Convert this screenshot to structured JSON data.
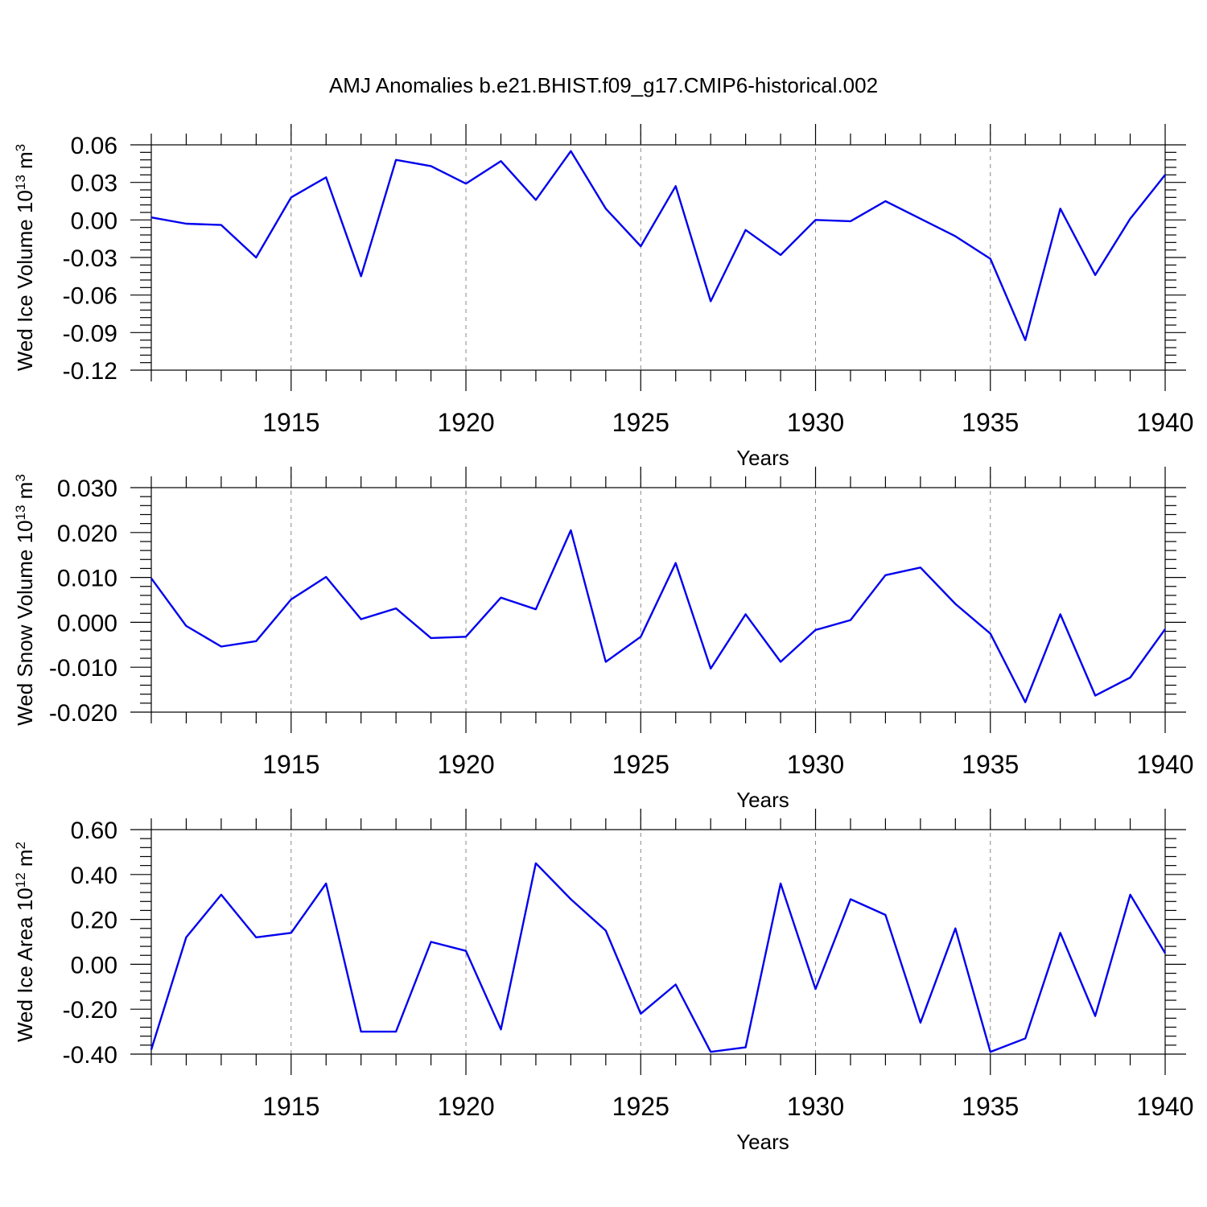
{
  "figure": {
    "title": "AMJ Anomalies b.e21.BHIST.f09_g17.CMIP6-historical.002"
  },
  "chart_data": [
    {
      "type": "line",
      "ylabel": "Wed Ice Volume 10",
      "ylabel_exp": "13",
      "ylabel_unit": " m",
      "ylabel_unit_exp": "3",
      "xlabel": "Years",
      "xlim": [
        1911,
        1940
      ],
      "ylim": [
        -0.12,
        0.06
      ],
      "yticks": [
        0.06,
        0.03,
        0.0,
        -0.03,
        -0.06,
        -0.09,
        -0.12
      ],
      "ytick_labels": [
        "0.06",
        "0.03",
        "0.00",
        "-0.03",
        "-0.06",
        "-0.09",
        "-0.12"
      ],
      "xticks": [
        1915,
        1920,
        1925,
        1930,
        1935,
        1940
      ],
      "xtick_labels": [
        "1915",
        "1920",
        "1925",
        "1930",
        "1935",
        "1940"
      ],
      "grid_x": true,
      "line_color": "#0000ee",
      "x": [
        1911,
        1912,
        1913,
        1914,
        1915,
        1916,
        1917,
        1918,
        1919,
        1920,
        1921,
        1922,
        1923,
        1924,
        1925,
        1926,
        1927,
        1928,
        1929,
        1930,
        1931,
        1932,
        1933,
        1934,
        1935,
        1936,
        1937,
        1938,
        1939,
        1940
      ],
      "values": [
        0.002,
        -0.003,
        -0.004,
        -0.03,
        0.018,
        0.034,
        -0.045,
        0.048,
        0.043,
        0.029,
        0.047,
        0.016,
        0.055,
        0.009,
        -0.021,
        0.027,
        -0.065,
        -0.008,
        -0.028,
        0.0,
        -0.001,
        0.015,
        0.001,
        -0.013,
        -0.031,
        -0.096,
        0.009,
        -0.044,
        0.001,
        0.036
      ]
    },
    {
      "type": "line",
      "ylabel": "Wed Snow Volume 10",
      "ylabel_exp": "13",
      "ylabel_unit": " m",
      "ylabel_unit_exp": "3",
      "xlabel": "Years",
      "xlim": [
        1911,
        1940
      ],
      "ylim": [
        -0.02,
        0.03
      ],
      "yticks": [
        0.03,
        0.02,
        0.01,
        0.0,
        -0.01,
        -0.02
      ],
      "ytick_labels": [
        "0.030",
        "0.020",
        "0.010",
        "0.000",
        "-0.010",
        "-0.020"
      ],
      "xticks": [
        1915,
        1920,
        1925,
        1930,
        1935,
        1940
      ],
      "xtick_labels": [
        "1915",
        "1920",
        "1925",
        "1930",
        "1935",
        "1940"
      ],
      "grid_x": true,
      "line_color": "#0000ee",
      "x": [
        1911,
        1912,
        1913,
        1914,
        1915,
        1916,
        1917,
        1918,
        1919,
        1920,
        1921,
        1922,
        1923,
        1924,
        1925,
        1926,
        1927,
        1928,
        1929,
        1930,
        1931,
        1932,
        1933,
        1934,
        1935,
        1936,
        1937,
        1938,
        1939,
        1940
      ],
      "values": [
        0.0098,
        -0.0008,
        -0.0054,
        -0.0042,
        0.0051,
        0.0101,
        0.0007,
        0.0031,
        -0.0035,
        -0.0032,
        0.0055,
        0.0029,
        0.0205,
        -0.0088,
        -0.0032,
        0.0132,
        -0.0103,
        0.0018,
        -0.0088,
        -0.0017,
        0.0005,
        0.0105,
        0.0122,
        0.0041,
        -0.0025,
        -0.0178,
        0.0018,
        -0.0163,
        -0.0123,
        -0.0015
      ]
    },
    {
      "type": "line",
      "ylabel": "Wed Ice Area 10",
      "ylabel_exp": "12",
      "ylabel_unit": " m",
      "ylabel_unit_exp": "2",
      "xlabel": "Years",
      "xlim": [
        1911,
        1940
      ],
      "ylim": [
        -0.4,
        0.6
      ],
      "yticks": [
        0.6,
        0.4,
        0.2,
        0.0,
        -0.2,
        -0.4
      ],
      "ytick_labels": [
        "0.60",
        "0.40",
        "0.20",
        "0.00",
        "-0.20",
        "-0.40"
      ],
      "xticks": [
        1915,
        1920,
        1925,
        1930,
        1935,
        1940
      ],
      "xtick_labels": [
        "1915",
        "1920",
        "1925",
        "1930",
        "1935",
        "1940"
      ],
      "grid_x": true,
      "line_color": "#0000ee",
      "x": [
        1911,
        1912,
        1913,
        1914,
        1915,
        1916,
        1917,
        1918,
        1919,
        1920,
        1921,
        1922,
        1923,
        1924,
        1925,
        1926,
        1927,
        1928,
        1929,
        1930,
        1931,
        1932,
        1933,
        1934,
        1935,
        1936,
        1937,
        1938,
        1939,
        1940
      ],
      "values": [
        -0.38,
        0.12,
        0.31,
        0.12,
        0.14,
        0.36,
        -0.3,
        -0.3,
        0.1,
        0.06,
        -0.29,
        0.45,
        0.29,
        0.15,
        -0.22,
        -0.09,
        -0.39,
        -0.37,
        0.36,
        -0.11,
        0.29,
        0.22,
        -0.26,
        0.16,
        -0.39,
        -0.33,
        0.14,
        -0.23,
        0.31,
        0.05
      ]
    }
  ]
}
